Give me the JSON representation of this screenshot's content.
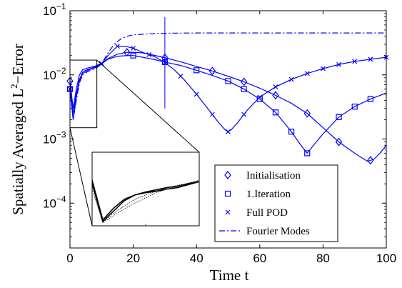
{
  "chart_data": {
    "type": "line",
    "xlabel": "Time t",
    "ylabel_main": "Spatially Averaged L",
    "ylabel_sup": "2",
    "ylabel_tail": "−Error",
    "xlim": [
      0,
      100
    ],
    "ylim": [
      2e-05,
      0.1
    ],
    "yscale": "log",
    "x_ticks": [
      0,
      20,
      40,
      60,
      80,
      100
    ],
    "y_ticks": [
      {
        "value": 0.1,
        "exp": "−1"
      },
      {
        "value": 0.01,
        "exp": "−2"
      },
      {
        "value": 0.001,
        "exp": "−3"
      },
      {
        "value": 0.0001,
        "exp": "−4"
      }
    ],
    "tick_base": "10",
    "grid": false,
    "legend_position": "bottom-right",
    "line_color": "#0000ff",
    "vertical_marker_x": 30,
    "vertical_marker_range": [
      0.003,
      0.08
    ],
    "series": [
      {
        "name": "Initialisation",
        "marker": "diamond",
        "line": "solid",
        "x": [
          0,
          1,
          2,
          3,
          4,
          5,
          6,
          7,
          8,
          9,
          10,
          12,
          15,
          18,
          20,
          23,
          27,
          30,
          35,
          40,
          45,
          50,
          55,
          60,
          65,
          70,
          75,
          80,
          85,
          90,
          94,
          96,
          98,
          100
        ],
        "y": [
          0.008,
          0.003,
          0.006,
          0.01,
          0.012,
          0.0125,
          0.013,
          0.0133,
          0.0137,
          0.0145,
          0.015,
          0.018,
          0.021,
          0.0225,
          0.0225,
          0.022,
          0.02,
          0.0185,
          0.016,
          0.0135,
          0.0115,
          0.0095,
          0.0078,
          0.0062,
          0.0048,
          0.0036,
          0.0025,
          0.0015,
          0.0009,
          0.0006,
          0.00045,
          0.00048,
          0.0006,
          0.0008
        ],
        "markers_x": [
          0,
          18,
          30,
          45,
          55,
          65,
          75,
          85,
          95
        ]
      },
      {
        "name": "1.Iteration",
        "marker": "square",
        "line": "solid",
        "x": [
          0,
          1,
          2,
          3,
          4,
          5,
          6,
          7,
          8,
          9,
          10,
          12,
          15,
          18,
          20,
          23,
          27,
          30,
          35,
          40,
          45,
          50,
          55,
          60,
          65,
          70,
          73,
          75,
          77,
          80,
          85,
          90,
          95,
          100
        ],
        "y": [
          0.006,
          0.0025,
          0.005,
          0.0085,
          0.011,
          0.0118,
          0.0123,
          0.0128,
          0.0133,
          0.014,
          0.0148,
          0.0175,
          0.0195,
          0.02,
          0.02,
          0.0188,
          0.0172,
          0.0158,
          0.014,
          0.0118,
          0.0098,
          0.008,
          0.006,
          0.0042,
          0.0026,
          0.0013,
          0.0008,
          0.0006,
          0.0008,
          0.0012,
          0.0022,
          0.0032,
          0.0042,
          0.0052
        ],
        "markers_x": [
          0,
          20,
          30,
          40,
          50,
          55,
          60,
          65,
          70,
          75,
          85,
          90,
          95
        ]
      },
      {
        "name": "Full POD",
        "marker": "x",
        "line": "solid",
        "x": [
          0,
          1,
          2,
          3,
          4,
          5,
          6,
          7,
          8,
          9,
          10,
          12,
          15,
          18,
          20,
          23,
          27,
          30,
          33,
          36,
          40,
          44,
          47,
          49,
          50,
          51,
          53,
          56,
          60,
          65,
          70,
          75,
          80,
          85,
          90,
          95,
          100
        ],
        "y": [
          0.006,
          0.002,
          0.0045,
          0.008,
          0.0105,
          0.0113,
          0.012,
          0.0125,
          0.013,
          0.0138,
          0.015,
          0.02,
          0.028,
          0.0275,
          0.026,
          0.0225,
          0.019,
          0.0155,
          0.012,
          0.0085,
          0.005,
          0.0028,
          0.0018,
          0.0014,
          0.0013,
          0.0014,
          0.0018,
          0.0028,
          0.0045,
          0.0065,
          0.0085,
          0.0105,
          0.0125,
          0.0145,
          0.0162,
          0.0175,
          0.0188
        ],
        "markers_x": [
          0,
          10,
          15,
          20,
          25,
          30,
          35,
          40,
          45,
          50,
          55,
          60,
          65,
          70,
          75,
          80,
          85,
          90,
          95,
          100
        ]
      },
      {
        "name": "Fourier Modes",
        "marker": "none",
        "line": "dashdot",
        "x": [
          0,
          1,
          2,
          3,
          4,
          5,
          6,
          7,
          8,
          9,
          10,
          12,
          14,
          16,
          18,
          20,
          23,
          27,
          30,
          35,
          40,
          50,
          60,
          70,
          80,
          90,
          100
        ],
        "y": [
          0.006,
          0.002,
          0.004,
          0.0075,
          0.01,
          0.0108,
          0.0115,
          0.012,
          0.0126,
          0.0135,
          0.0148,
          0.022,
          0.03,
          0.036,
          0.04,
          0.042,
          0.043,
          0.044,
          0.0445,
          0.0448,
          0.045,
          0.045,
          0.045,
          0.045,
          0.045,
          0.045,
          0.045
        ]
      }
    ],
    "zoom_source_box": {
      "x": [
        0,
        8.5
      ],
      "y": [
        0.0015,
        0.017
      ]
    },
    "inset": {
      "x": [
        0,
        1,
        2,
        3,
        4,
        5,
        6,
        7,
        8,
        9,
        10
      ],
      "lines": [
        {
          "style": "solid",
          "y": [
            0.62,
            0.08,
            0.24,
            0.36,
            0.42,
            0.45,
            0.47,
            0.5,
            0.52,
            0.56,
            0.6
          ]
        },
        {
          "style": "solid",
          "y": [
            0.58,
            0.06,
            0.2,
            0.34,
            0.42,
            0.46,
            0.49,
            0.52,
            0.54,
            0.57,
            0.6
          ]
        },
        {
          "style": "dotted",
          "y": [
            0.55,
            0.05,
            0.17,
            0.27,
            0.36,
            0.42,
            0.47,
            0.52,
            0.55,
            0.58,
            0.61
          ]
        },
        {
          "style": "dotted",
          "y": [
            0.5,
            0.04,
            0.14,
            0.23,
            0.31,
            0.38,
            0.45,
            0.5,
            0.54,
            0.58,
            0.62
          ]
        }
      ]
    }
  }
}
